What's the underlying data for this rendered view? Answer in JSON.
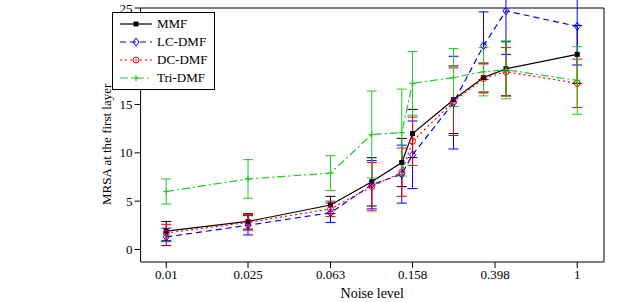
{
  "chart_data": {
    "type": "line",
    "x_label": "Noise level",
    "y_label": "MRSA at the first layer",
    "x": [
      0.01,
      0.025,
      0.063,
      0.1,
      0.14,
      0.158,
      0.25,
      0.35,
      0.45,
      1
    ],
    "log": "x",
    "xlim": [
      0.0075,
      1.35
    ],
    "xticks": [
      0.01,
      0.025,
      0.063,
      0.158,
      0.398,
      1
    ],
    "ylim": [
      -1.3,
      25
    ],
    "yticks": [
      0,
      5,
      10,
      15,
      20,
      25
    ],
    "grid": false,
    "legend": "upper left",
    "series": [
      {
        "name": "MMF",
        "color": "#000000",
        "marker": "square",
        "line_style": "solid",
        "values": [
          1.9,
          2.9,
          4.6,
          7.0,
          9.0,
          12.0,
          15.5,
          17.8,
          18.7,
          20.2
        ],
        "errors": [
          1.0,
          0.8,
          0.9,
          2.5,
          2.5,
          2.5,
          3.5,
          1.5,
          2.8,
          3.0
        ]
      },
      {
        "name": "LC-DMF",
        "color": "#0000ff",
        "marker": "diamond",
        "line_style": "dashed",
        "values": [
          1.3,
          2.5,
          3.8,
          6.7,
          7.8,
          9.8,
          15.2,
          21.1,
          24.7,
          23.1
        ],
        "errors": [
          0.9,
          1.0,
          1.0,
          2.5,
          3.0,
          3.5,
          4.8,
          3.5,
          4.5,
          4.0
        ]
      },
      {
        "name": "DC-DMF",
        "color": "#ff0000",
        "marker": "circle",
        "line_style": "dotted",
        "values": [
          1.7,
          2.8,
          4.2,
          6.5,
          8.0,
          11.2,
          15.3,
          17.7,
          18.4,
          17.2
        ],
        "errors": [
          0.9,
          0.8,
          0.8,
          2.5,
          2.5,
          2.5,
          3.5,
          1.5,
          2.5,
          2.5
        ]
      },
      {
        "name": "Tri-DMF",
        "color": "#22cc22",
        "marker": "plus",
        "line_style": "dashdot",
        "values": [
          6.0,
          7.3,
          7.9,
          11.9,
          12.1,
          17.2,
          17.8,
          18.4,
          18.6,
          17.5
        ],
        "errors": [
          1.3,
          2.0,
          1.8,
          4.5,
          4.5,
          3.3,
          3.0,
          2.5,
          3.0,
          3.5
        ]
      }
    ]
  }
}
